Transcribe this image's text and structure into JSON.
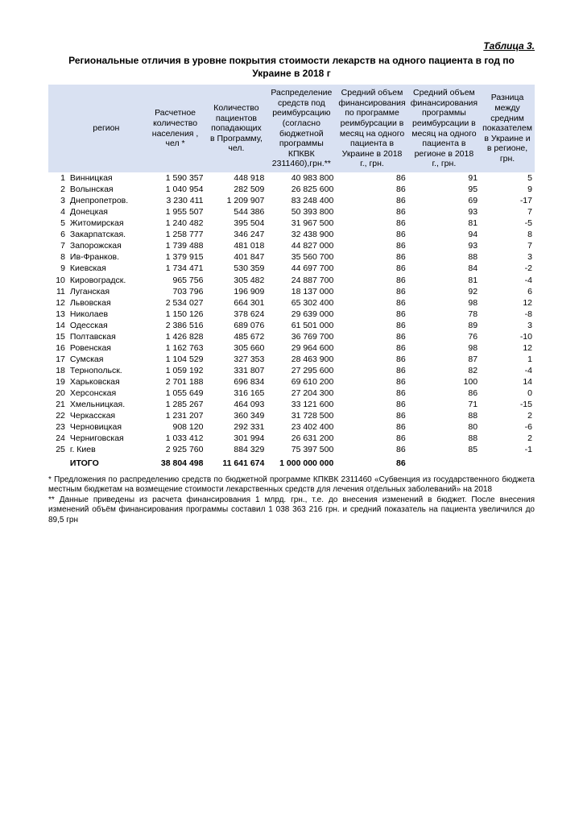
{
  "table_label": "Таблица 3.",
  "title": "Региональные отличия в уровне покрытия стоимости лекарств на одного пациента в год по Украине в 2018 г",
  "columns": [
    "",
    "регион",
    "Расчетное количество населения , чел *",
    "Количество пациентов попадающих в Программу, чел.",
    "Распределение средств под реимбурсацию (согласно бюджетной программы КПКВК 2311460),грн.**",
    "Средний объем финансирования по программе реимбурсации в месяц на одного пациента в Украине в 2018 г., грн.",
    "Средний объем финансирования программы реимбурсации в месяц на одного пациента в регионе в 2018 г., грн.",
    "Разница между средним показателем в Украине и в регионе, грн."
  ],
  "col_widths": [
    "18px",
    "90px",
    "70px",
    "70px",
    "80px",
    "70px",
    "75px",
    "55px"
  ],
  "header_bg": "#d9e1f2",
  "rows": [
    [
      "1",
      "Винницкая",
      "1 590 357",
      "448 918",
      "40 983 800",
      "86",
      "91",
      "5"
    ],
    [
      "2",
      "Волынская",
      "1 040 954",
      "282 509",
      "26 825 600",
      "86",
      "95",
      "9"
    ],
    [
      "3",
      "Днепропетров.",
      "3 230 411",
      "1 209 907",
      "83 248 400",
      "86",
      "69",
      "-17"
    ],
    [
      "4",
      "Донецкая",
      "1 955 507",
      "544 386",
      "50 393 800",
      "86",
      "93",
      "7"
    ],
    [
      "5",
      "Житомирская",
      "1 240 482",
      "395 504",
      "31 967 500",
      "86",
      "81",
      "-5"
    ],
    [
      "6",
      "Закарпатская.",
      "1 258 777",
      "346 247",
      "32 438 900",
      "86",
      "94",
      "8"
    ],
    [
      "7",
      "Запорожская",
      "1 739 488",
      "481 018",
      "44 827 000",
      "86",
      "93",
      "7"
    ],
    [
      "8",
      "Ив-Франков.",
      "1 379 915",
      "401 847",
      "35 560 700",
      "86",
      "88",
      "3"
    ],
    [
      "9",
      "Киевская",
      "1 734 471",
      "530 359",
      "44 697 700",
      "86",
      "84",
      "-2"
    ],
    [
      "10",
      "Кировоградск.",
      "965 756",
      "305 482",
      "24 887 700",
      "86",
      "81",
      "-4"
    ],
    [
      "11",
      "Луганская",
      "703 796",
      "196 909",
      "18 137 000",
      "86",
      "92",
      "6"
    ],
    [
      "12",
      "Львовская",
      "2 534 027",
      "664 301",
      "65 302 400",
      "86",
      "98",
      "12"
    ],
    [
      "13",
      "Николаев",
      "1 150 126",
      "378 624",
      "29 639 000",
      "86",
      "78",
      "-8"
    ],
    [
      "14",
      "Одесская",
      "2 386 516",
      "689 076",
      "61 501 000",
      "86",
      "89",
      "3"
    ],
    [
      "15",
      "Полтавская",
      "1 426 828",
      "485 672",
      "36 769 700",
      "86",
      "76",
      "-10"
    ],
    [
      "16",
      "Ровенская",
      "1 162 763",
      "305 660",
      "29 964 600",
      "86",
      "98",
      "12"
    ],
    [
      "17",
      "Сумская",
      "1 104 529",
      "327 353",
      "28 463 900",
      "86",
      "87",
      "1"
    ],
    [
      "18",
      "Тернопольск.",
      "1 059 192",
      "331 807",
      "27 295 600",
      "86",
      "82",
      "-4"
    ],
    [
      "19",
      "Харьковская",
      "2 701 188",
      "696 834",
      "69 610 200",
      "86",
      "100",
      "14"
    ],
    [
      "20",
      "Херсонская",
      "1 055 649",
      "316 165",
      "27 204 300",
      "86",
      "86",
      "0"
    ],
    [
      "21",
      "Хмельницкая.",
      "1 285 267",
      "464 093",
      "33 121 600",
      "86",
      "71",
      "-15"
    ],
    [
      "22",
      "Черкасская",
      "1 231 207",
      "360 349",
      "31 728 500",
      "86",
      "88",
      "2"
    ],
    [
      "23",
      "Черновицкая",
      "908 120",
      "292 331",
      "23 402 400",
      "86",
      "80",
      "-6"
    ],
    [
      "24",
      "Черниговская",
      "1 033 412",
      "301 994",
      "26 631 200",
      "86",
      "88",
      "2"
    ],
    [
      "25",
      "г. Киев",
      "2 925 760",
      "884 329",
      "75 397 500",
      "86",
      "85",
      "-1"
    ]
  ],
  "total": [
    "",
    "ИТОГО",
    "38 804 498",
    "11 641 674",
    "1 000 000 000",
    "86",
    "",
    ""
  ],
  "footnotes": [
    "* Предложения по распределению средств по бюджетной программе КПКВК 2311460 «Субвенция из государственного бюджета местным бюджетам на возмещение стоимости лекарственных средств для лечения отдельных заболеваний» на 2018",
    "** Данные приведены из расчета финансирования 1 млрд. грн., т.е. до внесения изменений в бюджет. После внесения изменений объём финансирования программы составил 1 038 363 216 грн. и средний показатель на пациента увеличился до 89,5 грн"
  ]
}
